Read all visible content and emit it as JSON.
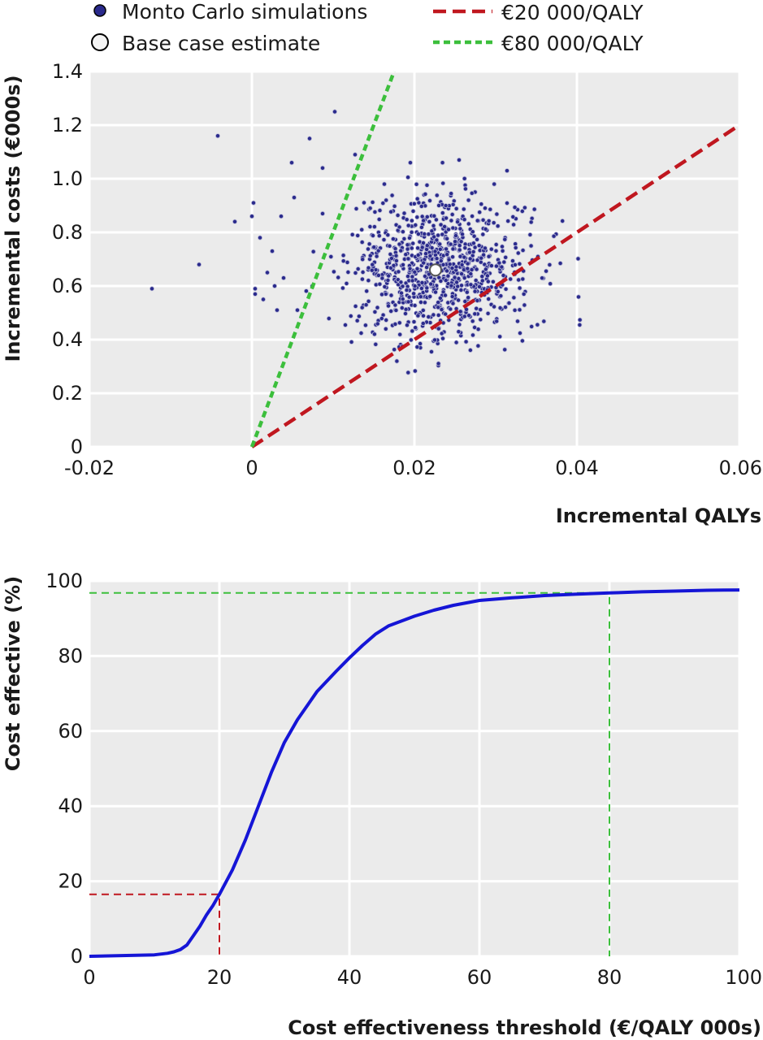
{
  "colors": {
    "panel_bg": "#ebebeb",
    "grid": "#ffffff",
    "simulation_fill": "#2a2a8c",
    "base_case_fill": "#ffffff",
    "threshold_20k": "#c0171f",
    "threshold_80k": "#3cbf3c",
    "ceac_line": "#1515d6"
  },
  "legend": {
    "simulations": "Monto Carlo simulations",
    "base_case": "Base case estimate",
    "wtp_20k": "€20 000/QALY",
    "wtp_80k": "€80 000/QALY"
  },
  "chart_data": [
    {
      "type": "scatter",
      "xlabel": "Incremental QALYs",
      "ylabel": "Incremental costs (€000s)",
      "xlim": [
        -0.02,
        0.06
      ],
      "ylim": [
        0,
        1.4
      ],
      "xticks": [
        "-0.02",
        "0",
        "0.02",
        "0.04",
        "0.06"
      ],
      "xtick_values": [
        -0.02,
        0,
        0.02,
        0.04,
        0.06
      ],
      "yticks": [
        "0",
        "0.2",
        "0.4",
        "0.6",
        "0.8",
        "1.0",
        "1.2",
        "1.4"
      ],
      "ytick_values": [
        0,
        0.2,
        0.4,
        0.6,
        0.8,
        1.0,
        1.2,
        1.4
      ],
      "grid": true,
      "base_case": {
        "x": 0.0226,
        "y": 0.66
      },
      "threshold_lines": [
        {
          "name": "€20 000/QALY",
          "slope": 20,
          "x_range": [
            0,
            0.06
          ]
        },
        {
          "name": "€80 000/QALY",
          "slope": 80,
          "x_range": [
            0,
            0.0175
          ]
        }
      ],
      "outlier_points": [
        [
          -0.0123,
          0.59
        ],
        [
          -0.0065,
          0.68
        ],
        [
          -0.0042,
          1.16
        ],
        [
          -0.0021,
          0.84
        ],
        [
          0.0,
          0.86
        ],
        [
          0.0002,
          0.91
        ],
        [
          0.0004,
          0.57
        ],
        [
          0.0004,
          0.59
        ],
        [
          0.001,
          0.78
        ],
        [
          0.0019,
          0.65
        ],
        [
          0.0028,
          0.6
        ],
        [
          0.0036,
          0.86
        ],
        [
          0.0039,
          0.63
        ],
        [
          0.0049,
          1.06
        ],
        [
          0.0052,
          0.93
        ],
        [
          0.0056,
          0.51
        ],
        [
          0.0071,
          1.15
        ],
        [
          0.0087,
          1.04
        ],
        [
          0.0102,
          1.25
        ],
        [
          0.0087,
          0.87
        ],
        [
          0.0127,
          1.09
        ],
        [
          0.0163,
          0.98
        ],
        [
          0.0195,
          1.06
        ],
        [
          0.0255,
          1.07
        ],
        [
          0.0314,
          1.03
        ],
        [
          0.0025,
          0.73
        ],
        [
          0.0031,
          0.51
        ],
        [
          0.0014,
          0.55
        ]
      ],
      "random_points": {
        "count": 900,
        "x_mean": 0.0232,
        "x_sd": 0.0055,
        "y_mean": 0.66,
        "y_sd": 0.135,
        "x_min": 0.006,
        "x_max": 0.041,
        "y_min": 0.27,
        "y_max": 1.06,
        "seed": 7
      }
    },
    {
      "type": "line",
      "xlabel": "Cost effectiveness threshold (€/QALY 000s)",
      "ylabel": "Cost effective (%)",
      "xlim": [
        0,
        100
      ],
      "ylim": [
        0,
        100
      ],
      "xticks": [
        "0",
        "20",
        "40",
        "60",
        "80",
        "100"
      ],
      "xtick_values": [
        0,
        20,
        40,
        60,
        80,
        100
      ],
      "yticks": [
        "0",
        "20",
        "40",
        "60",
        "80",
        "100"
      ],
      "ytick_values": [
        0,
        20,
        40,
        60,
        80,
        100
      ],
      "grid": true,
      "series": [
        {
          "x": [
            0,
            5,
            10,
            12,
            13,
            14,
            15,
            16,
            17,
            18,
            19,
            20,
            22,
            24,
            26,
            28,
            30,
            32,
            35,
            38,
            40,
            42,
            44,
            46,
            48,
            50,
            53,
            56,
            60,
            65,
            70,
            75,
            80,
            85,
            90,
            95,
            100
          ],
          "y": [
            0,
            0.2,
            0.4,
            0.8,
            1.2,
            1.8,
            3,
            5.5,
            8,
            11,
            13.5,
            16.5,
            23,
            31,
            40,
            49,
            57,
            63,
            70.5,
            76,
            79.5,
            82.8,
            85.8,
            88,
            89.3,
            90.6,
            92.2,
            93.5,
            94.8,
            95.5,
            96.1,
            96.5,
            96.8,
            97.1,
            97.3,
            97.5,
            97.6
          ]
        }
      ],
      "reference_lines": [
        {
          "name": "€20 000/QALY",
          "x": 20,
          "y": 16.5
        },
        {
          "name": "€80 000/QALY",
          "x": 80,
          "y": 96.8
        }
      ]
    }
  ]
}
